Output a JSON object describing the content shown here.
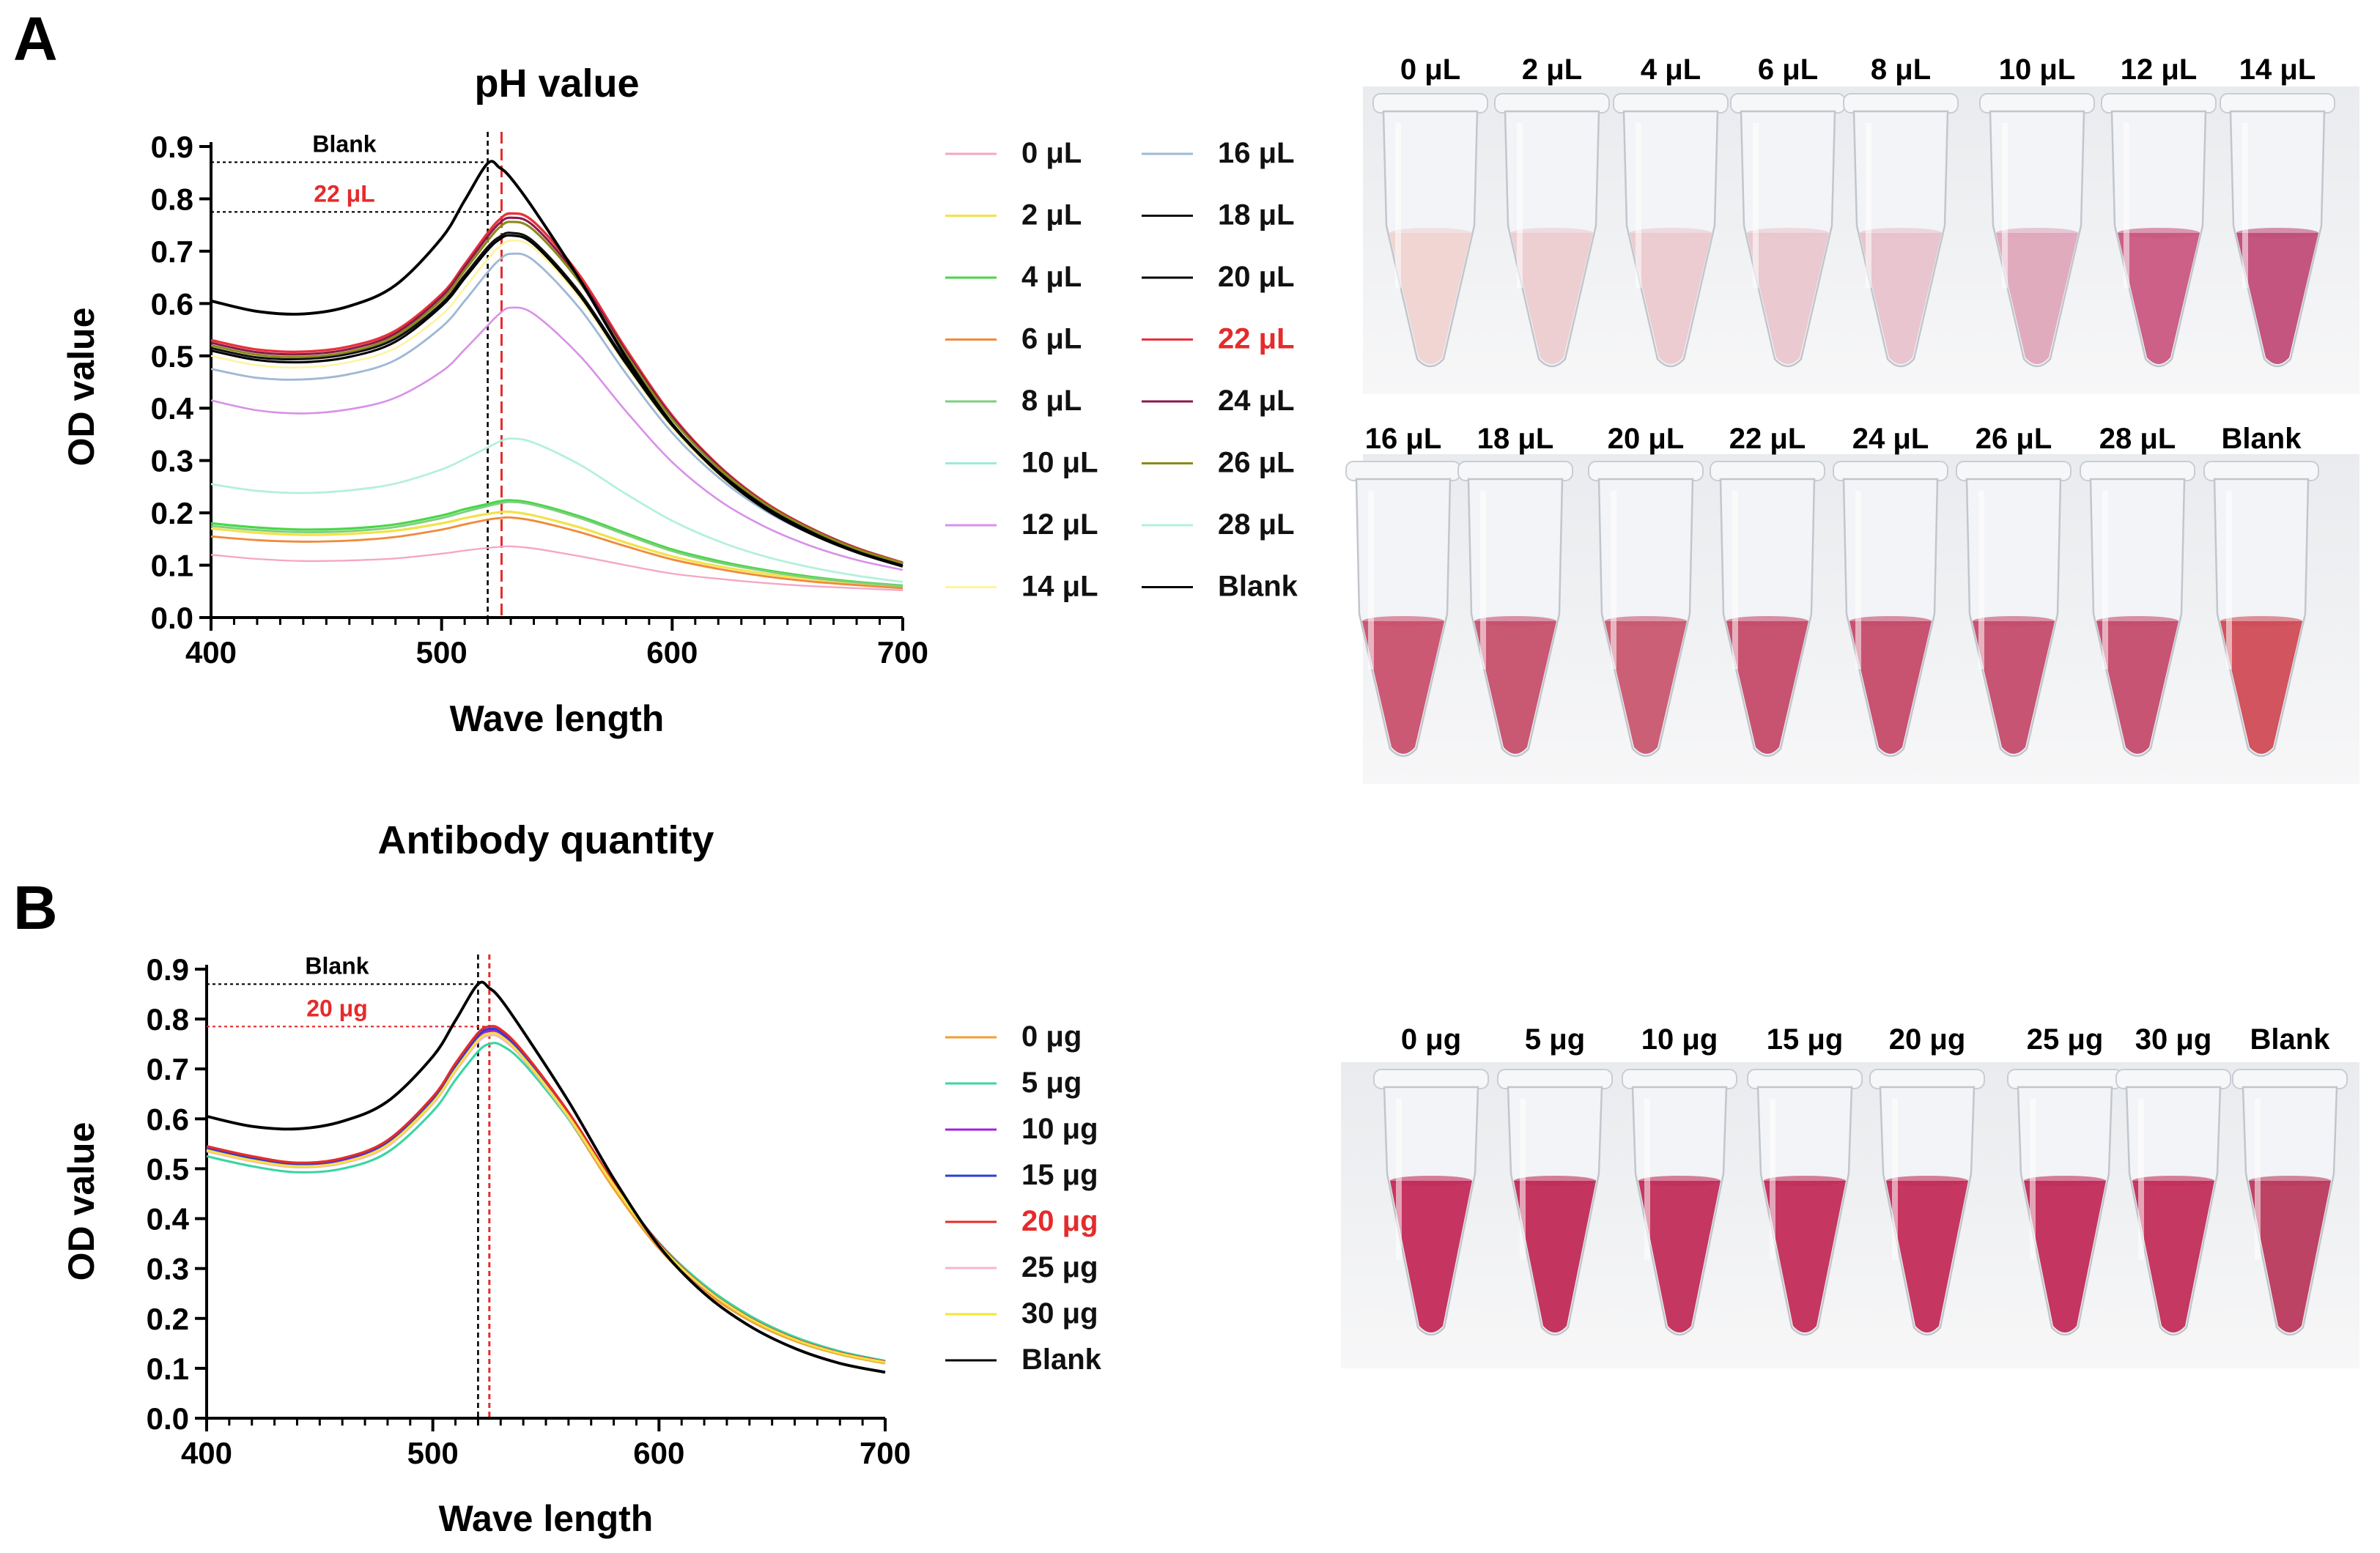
{
  "figure": {
    "panel_a_letter": "A",
    "panel_b_letter": "B",
    "photo_a_top_labels": [
      "0 μL",
      "2 μL",
      "4 μL",
      "6 μL",
      "8 μL",
      "10 μL",
      "12 μL",
      "14 μL"
    ],
    "photo_a_bottom_labels": [
      "16 μL",
      "18 μL",
      "20 μL",
      "22 μL",
      "24 μL",
      "26 μL",
      "28 μL",
      "Blank"
    ],
    "photo_b_labels": [
      "0 μg",
      "5 μg",
      "10 μg",
      "15 μg",
      "20 μg",
      "25 μg",
      "30 μg",
      "Blank"
    ],
    "tube_colors_a_top": [
      "#efd3d1",
      "#ecccd0",
      "#ebc9cf",
      "#e9c6cd",
      "#e7c2cc",
      "#dfa6bb",
      "#c9577f",
      "#c04c78"
    ],
    "tube_colors_a_bottom": [
      "#c9506d",
      "#c64f6c",
      "#c8566f",
      "#c44a69",
      "#c44a69",
      "#c44b6a",
      "#c44b6b",
      "#cf4b55"
    ],
    "tube_colors_b": [
      "#c32a58",
      "#c02a56",
      "#c12c58",
      "#c22c57",
      "#c22c57",
      "#c12b58",
      "#c22d59",
      "#b9395c"
    ]
  },
  "chart_data": [
    {
      "type": "line",
      "title": "pH value",
      "xlabel": "Wave length",
      "ylabel": "OD value",
      "xlim": [
        400,
        700
      ],
      "ylim": [
        0,
        0.9
      ],
      "xticks": [
        "400",
        "500",
        "600",
        "700"
      ],
      "yticks": [
        "0.0",
        "0.1",
        "0.2",
        "0.3",
        "0.4",
        "0.5",
        "0.6",
        "0.7",
        "0.8",
        "0.9"
      ],
      "x": [
        400,
        420,
        440,
        460,
        480,
        500,
        510,
        520,
        525,
        530,
        540,
        560,
        580,
        600,
        620,
        640,
        660,
        680,
        700
      ],
      "reference_lines": {
        "blank_label": "Blank",
        "blank_peak": {
          "x": 520,
          "y": 0.87
        },
        "selected_label": "22 μL",
        "selected_peak": {
          "x": 526,
          "y": 0.775
        }
      },
      "series": [
        {
          "name": "0 μL",
          "color": "#f4a6c6",
          "width": 1.8,
          "values": [
            0.12,
            0.112,
            0.108,
            0.109,
            0.113,
            0.122,
            0.128,
            0.133,
            0.135,
            0.136,
            0.132,
            0.117,
            0.1,
            0.084,
            0.074,
            0.066,
            0.06,
            0.056,
            0.052
          ]
        },
        {
          "name": "2 μL",
          "color": "#f2e24a",
          "width": 2.5,
          "values": [
            0.17,
            0.162,
            0.158,
            0.16,
            0.166,
            0.18,
            0.19,
            0.198,
            0.201,
            0.202,
            0.195,
            0.172,
            0.143,
            0.117,
            0.098,
            0.084,
            0.074,
            0.066,
            0.06
          ]
        },
        {
          "name": "4 μL",
          "color": "#49d649",
          "width": 2.5,
          "values": [
            0.18,
            0.172,
            0.168,
            0.17,
            0.178,
            0.195,
            0.207,
            0.217,
            0.222,
            0.224,
            0.218,
            0.193,
            0.161,
            0.13,
            0.108,
            0.091,
            0.078,
            0.068,
            0.061
          ]
        },
        {
          "name": "6 μL",
          "color": "#f08a3c",
          "width": 2.2,
          "values": [
            0.155,
            0.148,
            0.145,
            0.147,
            0.154,
            0.168,
            0.178,
            0.187,
            0.19,
            0.191,
            0.185,
            0.163,
            0.136,
            0.111,
            0.093,
            0.079,
            0.069,
            0.062,
            0.056
          ]
        },
        {
          "name": "8 μL",
          "color": "#7fcf7f",
          "width": 2.2,
          "values": [
            0.175,
            0.167,
            0.163,
            0.165,
            0.173,
            0.19,
            0.202,
            0.213,
            0.218,
            0.221,
            0.215,
            0.19,
            0.158,
            0.127,
            0.105,
            0.089,
            0.076,
            0.067,
            0.06
          ]
        },
        {
          "name": "10 μL",
          "color": "#9ee9d9",
          "width": 2.0,
          "values": [
            0.255,
            0.242,
            0.238,
            0.243,
            0.256,
            0.283,
            0.303,
            0.325,
            0.336,
            0.342,
            0.334,
            0.292,
            0.236,
            0.185,
            0.146,
            0.117,
            0.096,
            0.08,
            0.068
          ]
        },
        {
          "name": "12 μL",
          "color": "#d990e8",
          "width": 2.0,
          "values": [
            0.415,
            0.396,
            0.39,
            0.398,
            0.42,
            0.47,
            0.512,
            0.558,
            0.58,
            0.592,
            0.58,
            0.5,
            0.394,
            0.297,
            0.225,
            0.174,
            0.137,
            0.11,
            0.091
          ]
        },
        {
          "name": "14 μL",
          "color": "#fff4a0",
          "width": 2.0,
          "values": [
            0.5,
            0.482,
            0.478,
            0.488,
            0.515,
            0.578,
            0.63,
            0.685,
            0.708,
            0.72,
            0.706,
            0.61,
            0.481,
            0.363,
            0.274,
            0.209,
            0.162,
            0.127,
            0.1
          ]
        },
        {
          "name": "16 μL",
          "color": "#9fb8d6",
          "width": 2.2,
          "values": [
            0.475,
            0.458,
            0.455,
            0.465,
            0.492,
            0.555,
            0.605,
            0.66,
            0.683,
            0.695,
            0.682,
            0.59,
            0.466,
            0.353,
            0.268,
            0.205,
            0.16,
            0.126,
            0.1
          ]
        },
        {
          "name": "18 μL",
          "color": "#111111",
          "width": 2.4,
          "values": [
            0.515,
            0.497,
            0.494,
            0.504,
            0.533,
            0.6,
            0.654,
            0.708,
            0.727,
            0.735,
            0.718,
            0.62,
            0.489,
            0.37,
            0.28,
            0.214,
            0.166,
            0.13,
            0.103
          ]
        },
        {
          "name": "20 μL",
          "color": "#000000",
          "width": 2.4,
          "values": [
            0.51,
            0.492,
            0.488,
            0.498,
            0.527,
            0.595,
            0.648,
            0.702,
            0.722,
            0.73,
            0.713,
            0.615,
            0.485,
            0.367,
            0.278,
            0.212,
            0.165,
            0.129,
            0.102
          ]
        },
        {
          "name": "22 μL",
          "color": "#e8313a",
          "width": 2.6,
          "values": [
            0.53,
            0.512,
            0.508,
            0.518,
            0.548,
            0.618,
            0.675,
            0.735,
            0.76,
            0.772,
            0.756,
            0.653,
            0.513,
            0.386,
            0.291,
            0.221,
            0.171,
            0.133,
            0.105
          ]
        },
        {
          "name": "24 μL",
          "color": "#8a1a4a",
          "width": 2.4,
          "values": [
            0.525,
            0.507,
            0.503,
            0.513,
            0.543,
            0.613,
            0.67,
            0.728,
            0.753,
            0.764,
            0.748,
            0.646,
            0.508,
            0.383,
            0.289,
            0.219,
            0.17,
            0.132,
            0.104
          ]
        },
        {
          "name": "26 μL",
          "color": "#8a8a1a",
          "width": 2.4,
          "values": [
            0.52,
            0.502,
            0.498,
            0.508,
            0.538,
            0.607,
            0.663,
            0.72,
            0.745,
            0.756,
            0.74,
            0.64,
            0.503,
            0.379,
            0.286,
            0.218,
            0.169,
            0.131,
            0.104
          ]
        },
        {
          "name": "28 μL",
          "color": "#b5f0dc",
          "width": 2.0,
          "values": [
            0.255,
            0.242,
            0.238,
            0.243,
            0.256,
            0.283,
            0.303,
            0.325,
            0.336,
            0.342,
            0.334,
            0.292,
            0.236,
            0.185,
            0.146,
            0.117,
            0.096,
            0.08,
            0.068
          ]
        },
        {
          "name": "Blank",
          "color": "#000000",
          "width": 3.0,
          "values": [
            0.605,
            0.585,
            0.58,
            0.595,
            0.635,
            0.725,
            0.797,
            0.868,
            0.86,
            0.84,
            0.78,
            0.645,
            0.497,
            0.37,
            0.277,
            0.209,
            0.161,
            0.125,
            0.098
          ]
        }
      ],
      "legend_columns": [
        [
          "0 μL",
          "2 μL",
          "4 μL",
          "6 μL",
          "8 μL",
          "10 μL",
          "12 μL",
          "14 μL"
        ],
        [
          "16 μL",
          "18 μL",
          "20 μL",
          "22 μL",
          "24 μL",
          "26 μL",
          "28 μL",
          "Blank"
        ]
      ],
      "highlighted_series": "22 μL"
    },
    {
      "type": "line",
      "title": "Antibody quantity",
      "xlabel": "Wave length",
      "ylabel": "OD value",
      "xlim": [
        400,
        700
      ],
      "ylim": [
        0,
        0.9
      ],
      "xticks": [
        "400",
        "500",
        "600",
        "700"
      ],
      "yticks": [
        "0.0",
        "0.1",
        "0.2",
        "0.3",
        "0.4",
        "0.5",
        "0.6",
        "0.7",
        "0.8",
        "0.9"
      ],
      "x": [
        400,
        420,
        440,
        460,
        480,
        500,
        510,
        520,
        525,
        530,
        540,
        560,
        580,
        600,
        620,
        640,
        660,
        680,
        700
      ],
      "reference_lines": {
        "blank_label": "Blank",
        "blank_peak": {
          "x": 520,
          "y": 0.87
        },
        "selected_label": "20 μg",
        "selected_peak": {
          "x": 525,
          "y": 0.785
        }
      },
      "series": [
        {
          "name": "0 μg",
          "color": "#f0a030",
          "width": 2.4,
          "values": [
            0.54,
            0.52,
            0.507,
            0.515,
            0.55,
            0.635,
            0.7,
            0.76,
            0.772,
            0.765,
            0.72,
            0.6,
            0.46,
            0.34,
            0.255,
            0.196,
            0.155,
            0.128,
            0.11
          ]
        },
        {
          "name": "5 μg",
          "color": "#3ad6a0",
          "width": 2.4,
          "values": [
            0.525,
            0.505,
            0.493,
            0.5,
            0.533,
            0.615,
            0.678,
            0.735,
            0.75,
            0.748,
            0.712,
            0.6,
            0.468,
            0.352,
            0.267,
            0.206,
            0.163,
            0.134,
            0.115
          ]
        },
        {
          "name": "10 μg",
          "color": "#a020e0",
          "width": 2.4,
          "values": [
            0.54,
            0.52,
            0.508,
            0.517,
            0.552,
            0.638,
            0.703,
            0.763,
            0.776,
            0.77,
            0.726,
            0.607,
            0.468,
            0.347,
            0.26,
            0.2,
            0.158,
            0.13,
            0.112
          ]
        },
        {
          "name": "15 μg",
          "color": "#2a3fd6",
          "width": 2.4,
          "values": [
            0.542,
            0.522,
            0.51,
            0.519,
            0.554,
            0.64,
            0.706,
            0.767,
            0.78,
            0.774,
            0.73,
            0.61,
            0.47,
            0.349,
            0.262,
            0.201,
            0.159,
            0.131,
            0.113
          ]
        },
        {
          "name": "20 μg",
          "color": "#e52b2b",
          "width": 2.6,
          "values": [
            0.545,
            0.525,
            0.512,
            0.521,
            0.557,
            0.644,
            0.711,
            0.772,
            0.785,
            0.779,
            0.734,
            0.613,
            0.472,
            0.35,
            0.262,
            0.201,
            0.159,
            0.131,
            0.113
          ]
        },
        {
          "name": "25 μg",
          "color": "#f5b5cf",
          "width": 2.4,
          "values": [
            0.535,
            0.515,
            0.503,
            0.511,
            0.545,
            0.63,
            0.695,
            0.754,
            0.767,
            0.762,
            0.72,
            0.603,
            0.466,
            0.347,
            0.261,
            0.2,
            0.158,
            0.13,
            0.112
          ]
        },
        {
          "name": "30 μg",
          "color": "#f2e43a",
          "width": 2.4,
          "values": [
            0.537,
            0.517,
            0.505,
            0.513,
            0.548,
            0.633,
            0.698,
            0.758,
            0.771,
            0.766,
            0.723,
            0.605,
            0.467,
            0.347,
            0.261,
            0.2,
            0.158,
            0.13,
            0.112
          ]
        },
        {
          "name": "Blank",
          "color": "#000000",
          "width": 3.0,
          "values": [
            0.605,
            0.585,
            0.58,
            0.595,
            0.635,
            0.725,
            0.797,
            0.87,
            0.862,
            0.84,
            0.775,
            0.635,
            0.48,
            0.345,
            0.25,
            0.185,
            0.14,
            0.11,
            0.092
          ]
        }
      ],
      "legend_columns": [
        [
          "0 μg",
          "5 μg",
          "10 μg",
          "15 μg",
          "20 μg",
          "25 μg",
          "30 μg",
          "Blank"
        ]
      ],
      "highlighted_series": "20 μg"
    }
  ]
}
